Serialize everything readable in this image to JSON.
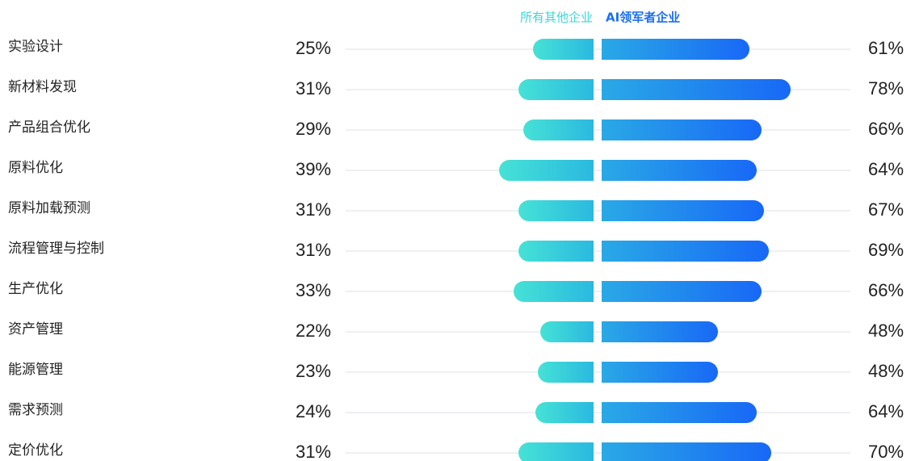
{
  "chart_data": {
    "type": "butterfly",
    "categories": [
      "实验设计",
      "新材料发现",
      "产品组合优化",
      "原料优化",
      "原料加载预测",
      "流程管理与控制",
      "生产优化",
      "资产管理",
      "能源管理",
      "需求预测",
      "定价优化"
    ],
    "series": [
      {
        "name": "所有其他企业",
        "color": "#3ad6da",
        "values": [
          25,
          31,
          29,
          39,
          31,
          31,
          33,
          22,
          23,
          24,
          31
        ],
        "value_labels": [
          "25%",
          "31%",
          "29%",
          "39%",
          "31%",
          "31%",
          "33%",
          "22%",
          "23%",
          "24%",
          "31%"
        ]
      },
      {
        "name": "AI领军者企业",
        "color": "#1a6ef5",
        "values": [
          61,
          78,
          66,
          64,
          67,
          69,
          66,
          48,
          48,
          64,
          70
        ],
        "value_labels": [
          "61%",
          "78%",
          "66%",
          "64%",
          "67%",
          "69%",
          "66%",
          "48%",
          "48%",
          "64%",
          "70%"
        ]
      }
    ]
  }
}
